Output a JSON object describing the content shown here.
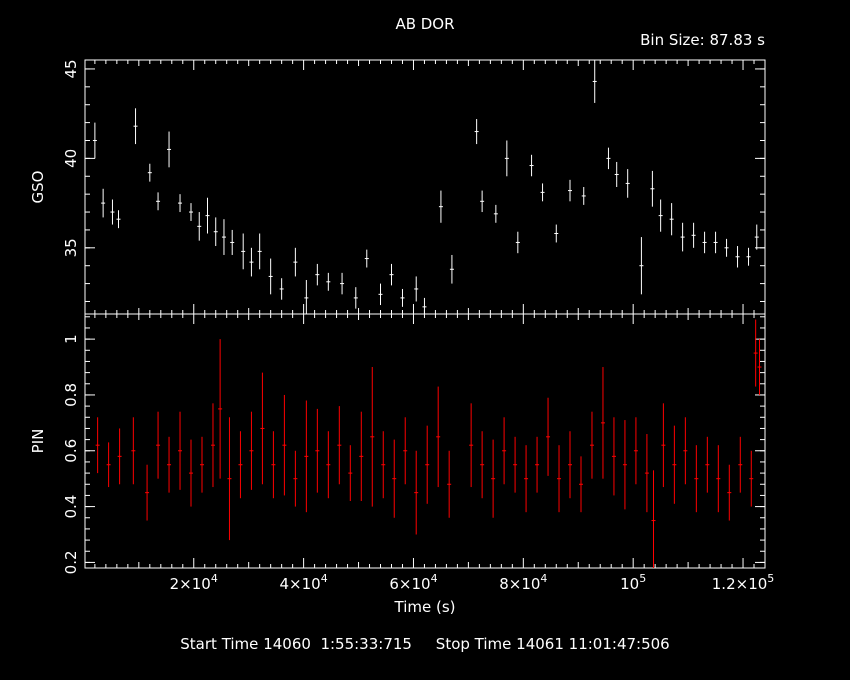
{
  "footer": {
    "start_label": "Start Time",
    "start_value": "14060  1:55:33:715",
    "stop_label": "Stop Time",
    "stop_value": "14061 11:01:47:506"
  },
  "chart_data": [
    {
      "type": "scatter",
      "title": "AB DOR",
      "subtitle": "Bin Size: 87.83 s",
      "ylabel": "GSO",
      "xlim": [
        200,
        124000
      ],
      "ylim": [
        31.3,
        45.5
      ],
      "y_ticks": [
        35,
        40,
        45
      ],
      "y_tick_labels": [
        "35",
        "40",
        "45"
      ],
      "color": "#ffffff",
      "series": [
        {
          "x": [
            2000,
            3500,
            5200,
            6300,
            9400,
            12000,
            13500,
            15500,
            17500,
            19500,
            21000,
            22500,
            24000,
            25500,
            27000,
            29000,
            30500,
            32000,
            34000,
            36000,
            38500,
            40500,
            42500,
            44500,
            47000,
            49500,
            51500,
            54000,
            56000,
            58000,
            60500,
            62000,
            65000,
            67000,
            71500,
            72500,
            75000,
            77000,
            79000,
            81500,
            83500,
            86000,
            88500,
            91000,
            93000,
            95500,
            97000,
            99000,
            101500,
            103500,
            105000,
            107000,
            109000,
            111000,
            113000,
            115000,
            117000,
            119000,
            121000,
            122500
          ],
          "y": [
            41,
            37.5,
            37,
            36.6,
            41.8,
            39.2,
            37.6,
            40.5,
            37.5,
            37,
            36.2,
            36.8,
            35.9,
            35.6,
            35.3,
            34.8,
            34.2,
            34.8,
            33.4,
            32.7,
            34.2,
            32.2,
            33.5,
            33.1,
            33,
            32.2,
            34.4,
            32.4,
            33.5,
            32.2,
            32.7,
            31.7,
            37.3,
            33.8,
            41.5,
            37.6,
            36.9,
            40,
            35.3,
            39.6,
            38.1,
            35.8,
            38.2,
            37.9,
            44.3,
            40,
            39.1,
            38.6,
            34,
            38.3,
            36.8,
            36.6,
            35.6,
            35.7,
            35.3,
            35.3,
            35,
            34.5,
            34.5,
            35.6
          ],
          "errors": [
            1,
            0.8,
            0.7,
            0.5,
            1,
            0.5,
            0.5,
            1,
            0.5,
            0.5,
            0.8,
            1,
            0.8,
            1,
            0.7,
            1,
            0.8,
            1,
            1,
            0.6,
            0.8,
            1,
            0.6,
            0.5,
            0.6,
            0.6,
            0.5,
            0.6,
            0.6,
            0.5,
            0.7,
            0.5,
            0.9,
            0.8,
            0.7,
            0.6,
            0.5,
            1,
            0.6,
            0.6,
            0.5,
            0.5,
            0.6,
            0.5,
            1.2,
            0.6,
            0.7,
            0.8,
            1.6,
            1,
            0.9,
            0.9,
            0.8,
            0.7,
            0.6,
            0.6,
            0.5,
            0.6,
            0.5,
            0.7
          ]
        }
      ]
    },
    {
      "type": "scatter",
      "ylabel": "PIN",
      "xlabel": "Time (s)",
      "xlim": [
        200,
        124000
      ],
      "ylim": [
        0.18,
        1.09
      ],
      "x_ticks": [
        20000,
        40000,
        60000,
        80000,
        100000,
        120000
      ],
      "x_tick_labels": [
        [
          "2×10",
          "4"
        ],
        [
          "4×10",
          "4"
        ],
        [
          "6×10",
          "4"
        ],
        [
          "8×10",
          "4"
        ],
        [
          "10",
          "5"
        ],
        [
          "1.2×10",
          "5"
        ]
      ],
      "y_ticks": [
        0.2,
        0.4,
        0.6,
        0.8,
        1
      ],
      "y_tick_labels": [
        "0.2",
        "0.4",
        "0.6",
        "0.8",
        "1"
      ],
      "color": "#ff0000",
      "series": [
        {
          "x": [
            2500,
            4500,
            6500,
            9000,
            11500,
            13500,
            15500,
            17500,
            19500,
            21500,
            23500,
            24800,
            26500,
            28500,
            30500,
            32500,
            34500,
            36500,
            38500,
            40500,
            42500,
            44500,
            46500,
            48500,
            50500,
            52500,
            54500,
            56500,
            58500,
            60500,
            62500,
            64500,
            66500,
            70500,
            72500,
            74500,
            76500,
            78500,
            80500,
            82500,
            84500,
            86500,
            88500,
            90500,
            92500,
            94500,
            96500,
            98500,
            100500,
            102500,
            103700,
            105500,
            107500,
            109500,
            111500,
            113500,
            115500,
            117500,
            119500,
            121500,
            122300,
            123000
          ],
          "y": [
            0.62,
            0.55,
            0.58,
            0.6,
            0.45,
            0.62,
            0.55,
            0.6,
            0.52,
            0.55,
            0.62,
            0.75,
            0.5,
            0.55,
            0.6,
            0.68,
            0.55,
            0.62,
            0.5,
            0.58,
            0.6,
            0.55,
            0.62,
            0.52,
            0.58,
            0.65,
            0.55,
            0.5,
            0.6,
            0.45,
            0.55,
            0.65,
            0.48,
            0.62,
            0.55,
            0.5,
            0.6,
            0.55,
            0.5,
            0.55,
            0.65,
            0.5,
            0.55,
            0.48,
            0.62,
            0.7,
            0.58,
            0.55,
            0.6,
            0.52,
            0.35,
            0.62,
            0.55,
            0.6,
            0.5,
            0.55,
            0.5,
            0.45,
            0.55,
            0.5,
            0.95,
            0.9
          ],
          "errors": [
            0.1,
            0.08,
            0.1,
            0.12,
            0.1,
            0.12,
            0.1,
            0.14,
            0.12,
            0.1,
            0.15,
            0.25,
            0.22,
            0.12,
            0.14,
            0.2,
            0.12,
            0.18,
            0.1,
            0.2,
            0.15,
            0.12,
            0.14,
            0.1,
            0.16,
            0.25,
            0.12,
            0.14,
            0.12,
            0.15,
            0.14,
            0.18,
            0.12,
            0.15,
            0.12,
            0.14,
            0.12,
            0.1,
            0.12,
            0.1,
            0.14,
            0.12,
            0.12,
            0.1,
            0.12,
            0.2,
            0.14,
            0.16,
            0.12,
            0.14,
            0.18,
            0.15,
            0.14,
            0.12,
            0.12,
            0.1,
            0.12,
            0.1,
            0.1,
            0.1,
            0.12,
            0.1
          ]
        }
      ]
    }
  ]
}
